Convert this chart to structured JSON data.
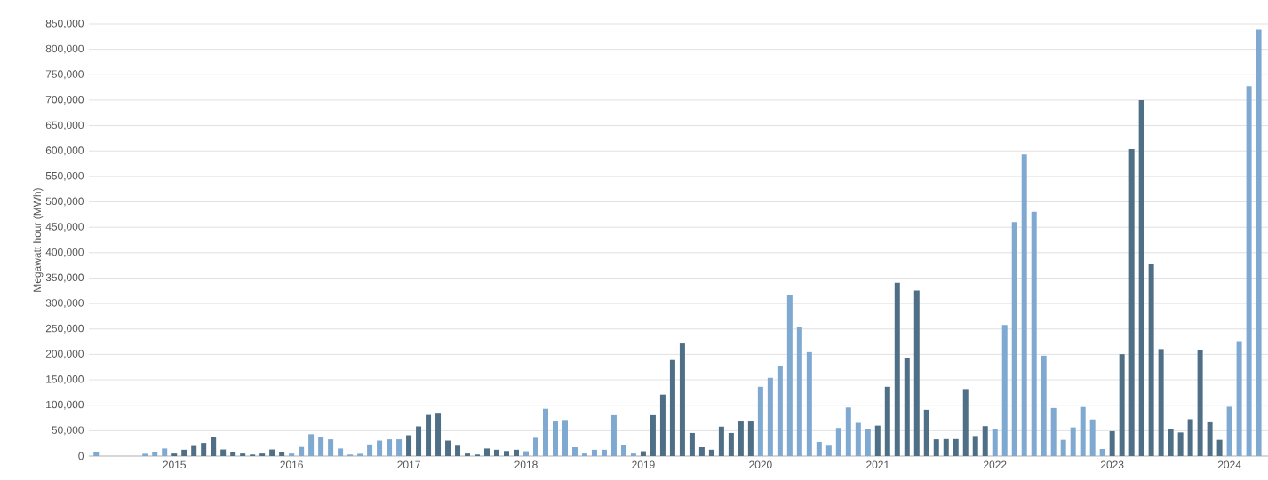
{
  "chart_data": {
    "type": "bar",
    "ylabel": "Megawatt hour (MWh)",
    "categories": [
      null,
      null,
      null,
      null,
      null,
      null,
      null,
      null,
      "2015",
      null,
      null,
      null,
      null,
      null,
      null,
      null,
      null,
      null,
      null,
      null,
      "2016",
      null,
      null,
      null,
      null,
      null,
      null,
      null,
      null,
      null,
      null,
      null,
      "2017",
      null,
      null,
      null,
      null,
      null,
      null,
      null,
      null,
      null,
      null,
      null,
      "2018",
      null,
      null,
      null,
      null,
      null,
      null,
      null,
      null,
      null,
      null,
      null,
      "2019",
      null,
      null,
      null,
      null,
      null,
      null,
      null,
      null,
      null,
      null,
      null,
      "2020",
      null,
      null,
      null,
      null,
      null,
      null,
      null,
      null,
      null,
      null,
      null,
      "2021",
      null,
      null,
      null,
      null,
      null,
      null,
      null,
      null,
      null,
      null,
      null,
      "2022",
      null,
      null,
      null,
      null,
      null,
      null,
      null,
      null,
      null,
      null,
      null,
      "2023",
      null,
      null,
      null,
      null,
      null,
      null,
      null,
      null,
      null,
      null,
      null,
      "2024",
      null,
      null,
      null
    ],
    "values": [
      7000,
      0,
      0,
      0,
      0,
      4500,
      7000,
      15000,
      5000,
      12500,
      20000,
      26000,
      38000,
      13000,
      8000,
      5000,
      3000,
      5000,
      13000,
      8000,
      5000,
      18000,
      43000,
      37500,
      33000,
      15000,
      3000,
      4500,
      23000,
      30500,
      33000,
      33000,
      41000,
      58500,
      81000,
      83500,
      30500,
      20500,
      5000,
      3000,
      15000,
      12500,
      10000,
      12500,
      9500,
      36000,
      93000,
      68000,
      71000,
      17500,
      5000,
      12500,
      12500,
      80500,
      22500,
      5000,
      9500,
      80500,
      121000,
      189000,
      221500,
      45500,
      17500,
      12500,
      58000,
      45500,
      68000,
      68000,
      136500,
      154000,
      176500,
      317500,
      254500,
      204500,
      28000,
      20500,
      55500,
      95500,
      65500,
      53000,
      60000,
      136500,
      341000,
      192000,
      325500,
      91000,
      33000,
      33500,
      33500,
      132000,
      39500,
      59000,
      54000,
      258000,
      460500,
      593000,
      480500,
      197500,
      94500,
      32000,
      56500,
      96500,
      72000,
      14000,
      49000,
      200500,
      604000,
      700000,
      377000,
      210500,
      54000,
      46500,
      72500,
      208000,
      66500,
      32000,
      97000,
      226000,
      727500,
      838500
    ],
    "colors": [
      "#7fa9d1",
      "#7fa9d1",
      "#7fa9d1",
      "#7fa9d1",
      "#7fa9d1",
      "#7fa9d1",
      "#7fa9d1",
      "#7fa9d1",
      "#4e6f85",
      "#4e6f85",
      "#4e6f85",
      "#4e6f85",
      "#4e6f85",
      "#4e6f85",
      "#4e6f85",
      "#4e6f85",
      "#4e6f85",
      "#4e6f85",
      "#4e6f85",
      "#4e6f85",
      "#7fa9d1",
      "#7fa9d1",
      "#7fa9d1",
      "#7fa9d1",
      "#7fa9d1",
      "#7fa9d1",
      "#7fa9d1",
      "#7fa9d1",
      "#7fa9d1",
      "#7fa9d1",
      "#7fa9d1",
      "#7fa9d1",
      "#4e6f85",
      "#4e6f85",
      "#4e6f85",
      "#4e6f85",
      "#4e6f85",
      "#4e6f85",
      "#4e6f85",
      "#4e6f85",
      "#4e6f85",
      "#4e6f85",
      "#4e6f85",
      "#4e6f85",
      "#7fa9d1",
      "#7fa9d1",
      "#7fa9d1",
      "#7fa9d1",
      "#7fa9d1",
      "#7fa9d1",
      "#7fa9d1",
      "#7fa9d1",
      "#7fa9d1",
      "#7fa9d1",
      "#7fa9d1",
      "#7fa9d1",
      "#4e6f85",
      "#4e6f85",
      "#4e6f85",
      "#4e6f85",
      "#4e6f85",
      "#4e6f85",
      "#4e6f85",
      "#4e6f85",
      "#4e6f85",
      "#4e6f85",
      "#4e6f85",
      "#4e6f85",
      "#7fa9d1",
      "#7fa9d1",
      "#7fa9d1",
      "#7fa9d1",
      "#7fa9d1",
      "#7fa9d1",
      "#7fa9d1",
      "#7fa9d1",
      "#7fa9d1",
      "#7fa9d1",
      "#7fa9d1",
      "#7fa9d1",
      "#4e6f85",
      "#4e6f85",
      "#4e6f85",
      "#4e6f85",
      "#4e6f85",
      "#4e6f85",
      "#4e6f85",
      "#4e6f85",
      "#4e6f85",
      "#4e6f85",
      "#4e6f85",
      "#4e6f85",
      "#7fa9d1",
      "#7fa9d1",
      "#7fa9d1",
      "#7fa9d1",
      "#7fa9d1",
      "#7fa9d1",
      "#7fa9d1",
      "#7fa9d1",
      "#7fa9d1",
      "#7fa9d1",
      "#7fa9d1",
      "#7fa9d1",
      "#4e6f85",
      "#4e6f85",
      "#4e6f85",
      "#4e6f85",
      "#4e6f85",
      "#4e6f85",
      "#4e6f85",
      "#4e6f85",
      "#4e6f85",
      "#4e6f85",
      "#4e6f85",
      "#4e6f85",
      "#7fa9d1",
      "#7fa9d1",
      "#7fa9d1",
      "#7fa9d1"
    ],
    "ylim": [
      0,
      850000
    ],
    "yticks": [
      {
        "value": 0,
        "label": "0"
      },
      {
        "value": 50000,
        "label": "50,000"
      },
      {
        "value": 100000,
        "label": "100,000"
      },
      {
        "value": 150000,
        "label": "150,000"
      },
      {
        "value": 200000,
        "label": "200,000"
      },
      {
        "value": 250000,
        "label": "250,000"
      },
      {
        "value": 300000,
        "label": "300,000"
      },
      {
        "value": 350000,
        "label": "350,000"
      },
      {
        "value": 400000,
        "label": "400,000"
      },
      {
        "value": 450000,
        "label": "450,000"
      },
      {
        "value": 500000,
        "label": "500,000"
      },
      {
        "value": 550000,
        "label": "550,000"
      },
      {
        "value": 600000,
        "label": "600,000"
      },
      {
        "value": 650000,
        "label": "650,000"
      },
      {
        "value": 700000,
        "label": "700,000"
      },
      {
        "value": 750000,
        "label": "750,000"
      },
      {
        "value": 800000,
        "label": "800,000"
      },
      {
        "value": 850000,
        "label": "850,000"
      }
    ],
    "grid": "y"
  }
}
